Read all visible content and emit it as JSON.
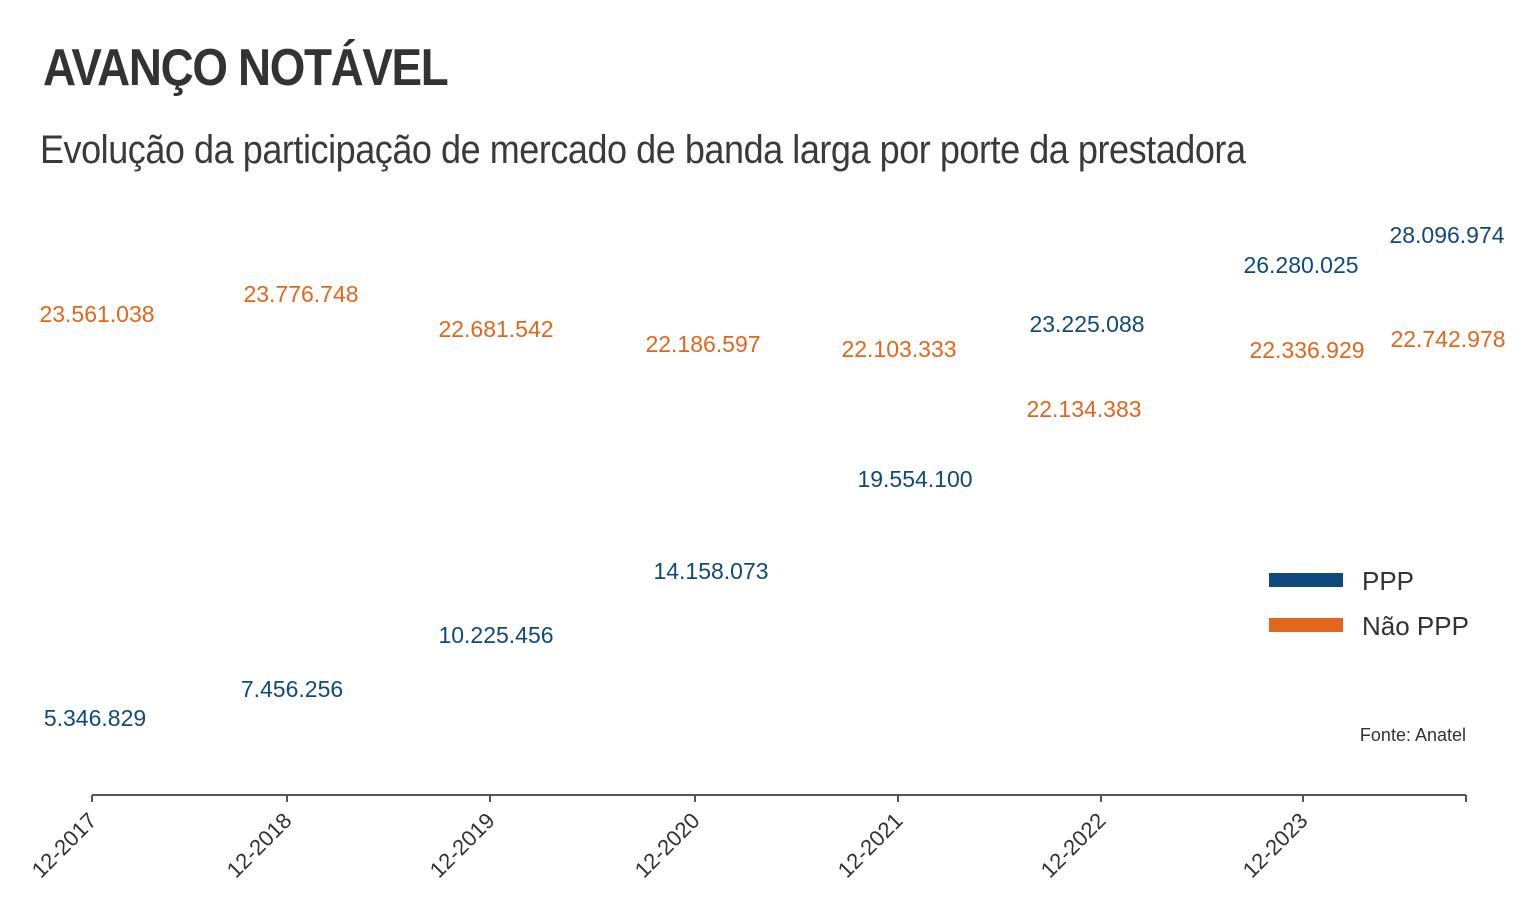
{
  "chart_data": {
    "type": "line",
    "title": "AVANÇO NOTÁVEL",
    "subtitle": "Evolução da participação de mercado de banda larga por porte da prestadora",
    "categories": [
      "12-2017",
      "12-2018",
      "12-2019",
      "12-2020",
      "12-2021",
      "12-2022",
      "12-2023",
      ""
    ],
    "series": [
      {
        "name": "PPP",
        "color": "#0e4a7b",
        "values": [
          5346829,
          7456256,
          10225456,
          14158073,
          19554100,
          23225088,
          26280025,
          28096974
        ],
        "labels": [
          "5.346.829",
          "7.456.256",
          "10.225.456",
          "14.158.073",
          "19.554.100",
          "23.225.088",
          "26.280.025",
          "28.096.974"
        ]
      },
      {
        "name": "Não PPP",
        "color": "#e3661d",
        "values": [
          23561038,
          23776748,
          22681542,
          22186597,
          22103333,
          22134383,
          22336929,
          22742978
        ],
        "labels": [
          "23.561.038",
          "23.776.748",
          "22.681.542",
          "22.186.597",
          "22.103.333",
          "22.134.383",
          "22.336.929",
          "22.742.978"
        ]
      }
    ],
    "xlabel": "",
    "ylabel": "",
    "ylim": [
      0,
      30000000
    ],
    "grid": false,
    "legend": "right",
    "source": "Fonte: Anatel"
  }
}
